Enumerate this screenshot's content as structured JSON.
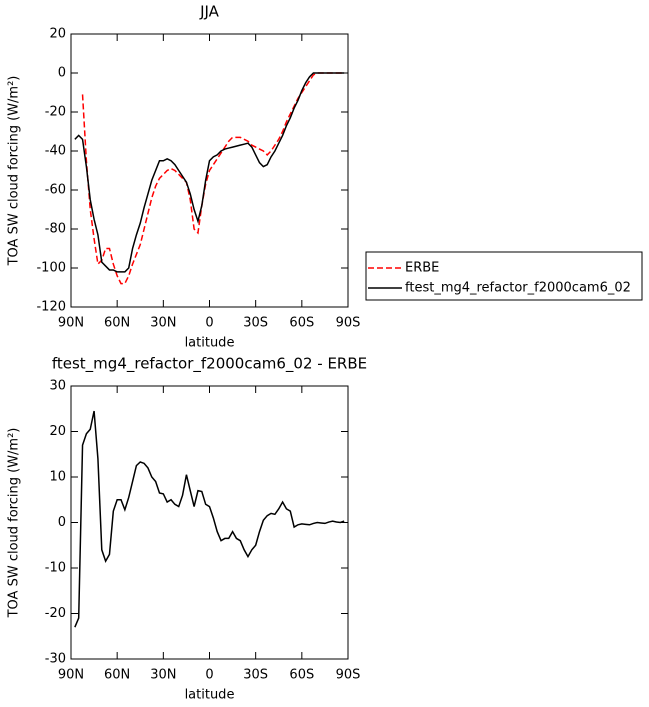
{
  "chart_data": [
    {
      "type": "line",
      "title": "JJA",
      "xlabel": "latitude",
      "ylabel": "TOA SW cloud forcing (W/m²)",
      "x": [
        87.5,
        85,
        82.5,
        80,
        77.5,
        75,
        72.5,
        70,
        67.5,
        65,
        62.5,
        60,
        57.5,
        55,
        52.5,
        50,
        47.5,
        45,
        42.5,
        40,
        37.5,
        35,
        32.5,
        30,
        27.5,
        25,
        22.5,
        20,
        17.5,
        15,
        12.5,
        10,
        7.5,
        5,
        2.5,
        0,
        -2.5,
        -5,
        -7.5,
        -10,
        -12.5,
        -15,
        -17.5,
        -20,
        -22.5,
        -25,
        -27.5,
        -30,
        -32.5,
        -35,
        -37.5,
        -40,
        -42.5,
        -45,
        -47.5,
        -50,
        -52.5,
        -55,
        -57.5,
        -60,
        -62.5,
        -65,
        -67.5,
        -70,
        -72.5,
        -75,
        -77.5,
        -80,
        -82.5,
        -85,
        -87.5
      ],
      "series": [
        {
          "name": "ERBE",
          "color": "#ff0000",
          "dashed": true,
          "values": [
            null,
            null,
            -11,
            -45,
            -70,
            -85,
            -98,
            -96,
            -90,
            -90,
            -98,
            -104,
            -108,
            -108,
            -104,
            -98,
            -93,
            -88,
            -80,
            -72,
            -64,
            -58,
            -54,
            -52,
            -50,
            -49,
            -50,
            -52,
            -54,
            -56,
            -65,
            -80,
            -82,
            -68,
            -57,
            -50,
            -47,
            -44,
            -41,
            -38,
            -35,
            -33,
            -33,
            -33,
            -34,
            -35,
            -37,
            -38,
            -39,
            -40,
            -42,
            -40,
            -37,
            -34,
            -30,
            -25,
            -21,
            -17,
            -13,
            -10,
            -7,
            -4,
            -1,
            0,
            0,
            0,
            0,
            0,
            0,
            0,
            0
          ]
        },
        {
          "name": "ftest_mg4_refactor_f2000cam6_02",
          "color": "#000000",
          "dashed": false,
          "values": [
            -34,
            -32,
            -34,
            -48,
            -65,
            -75,
            -83,
            -97,
            -99,
            -101,
            -101,
            -102,
            -102,
            -102,
            -100,
            -90,
            -83,
            -77,
            -69,
            -62,
            -55,
            -50,
            -45,
            -45,
            -44,
            -45,
            -47,
            -50,
            -53,
            -56,
            -62,
            -70,
            -76,
            -68,
            -55,
            -45,
            -43,
            -42,
            -40,
            -39,
            -38.5,
            -38,
            -37.5,
            -37,
            -36.5,
            -36,
            -38,
            -42,
            -46,
            -48,
            -47,
            -43,
            -40,
            -36,
            -32,
            -27,
            -23,
            -18,
            -14,
            -9,
            -5,
            -2,
            0,
            0,
            0,
            0,
            0,
            0,
            0,
            0,
            0
          ]
        }
      ],
      "xlim": [
        90,
        -90
      ],
      "xticks": [
        {
          "value": 90,
          "label": "90N"
        },
        {
          "value": 60,
          "label": "60N"
        },
        {
          "value": 30,
          "label": "30N"
        },
        0,
        {
          "value": -30,
          "label": "30S"
        },
        {
          "value": -60,
          "label": "60S"
        },
        {
          "value": -90,
          "label": "90S"
        }
      ],
      "ylim": [
        -120,
        20
      ],
      "yticks": [
        -120,
        -100,
        -80,
        -60,
        -40,
        -20,
        0,
        20
      ],
      "legend": "right"
    },
    {
      "type": "line",
      "title": "ftest_mg4_refactor_f2000cam6_02 - ERBE",
      "xlabel": "latitude",
      "ylabel": "TOA SW cloud forcing (W/m²)",
      "x": [
        87.5,
        85,
        82.5,
        80,
        77.5,
        75,
        72.5,
        70,
        67.5,
        65,
        62.5,
        60,
        57.5,
        55,
        52.5,
        50,
        47.5,
        45,
        42.5,
        40,
        37.5,
        35,
        32.5,
        30,
        27.5,
        25,
        22.5,
        20,
        17.5,
        15,
        12.5,
        10,
        7.5,
        5,
        2.5,
        0,
        -2.5,
        -5,
        -7.5,
        -10,
        -12.5,
        -15,
        -17.5,
        -20,
        -22.5,
        -25,
        -27.5,
        -30,
        -32.5,
        -35,
        -37.5,
        -40,
        -42.5,
        -45,
        -47.5,
        -50,
        -52.5,
        -55,
        -57.5,
        -60,
        -62.5,
        -65,
        -67.5,
        -70,
        -72.5,
        -75,
        -77.5,
        -80,
        -82.5,
        -85,
        -87.5
      ],
      "values": [
        -23,
        -21,
        17,
        19.5,
        20.5,
        24.5,
        14,
        -6,
        -8.5,
        -7,
        2.5,
        5,
        5,
        2.8,
        5.5,
        9,
        12.5,
        13.3,
        13,
        12,
        10,
        9,
        6.5,
        6.3,
        4.5,
        5,
        4,
        3.5,
        6,
        10.5,
        7,
        3.5,
        7,
        6.8,
        4,
        3.5,
        1,
        -2,
        -4,
        -3.5,
        -3.5,
        -2,
        -3.5,
        -4,
        -6,
        -7.5,
        -6,
        -5,
        -2,
        0.5,
        1.5,
        2,
        1.8,
        3,
        4.5,
        3,
        2.5,
        -1,
        -0.5,
        -0.3,
        -0.4,
        -0.5,
        -0.2,
        0,
        -0.1,
        -0.2,
        0.1,
        0.3,
        0.1,
        0,
        0.3
      ],
      "color": "#000000",
      "xlim": [
        90,
        -90
      ],
      "xticks": [
        {
          "value": 90,
          "label": "90N"
        },
        {
          "value": 60,
          "label": "60N"
        },
        {
          "value": 30,
          "label": "30N"
        },
        0,
        {
          "value": -30,
          "label": "30S"
        },
        {
          "value": -60,
          "label": "60S"
        },
        {
          "value": -90,
          "label": "90S"
        }
      ],
      "ylim": [
        -30,
        30
      ],
      "yticks": [
        -30,
        -20,
        -10,
        0,
        10,
        20,
        30
      ]
    }
  ]
}
